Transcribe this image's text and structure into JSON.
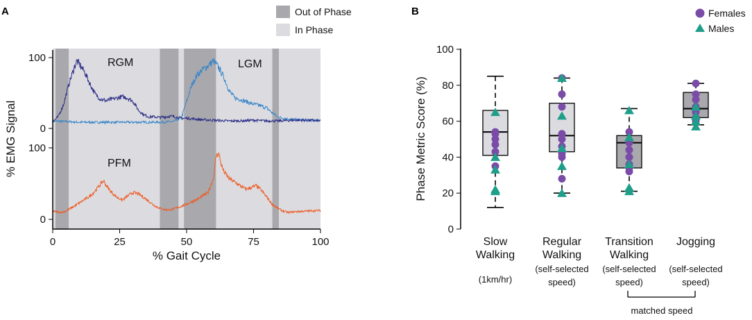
{
  "chart_data": [
    {
      "panel": "A",
      "type": "line",
      "xlabel": "% Gait Cycle",
      "ylabel": "% EMG Signal",
      "x_ticks": [
        "0",
        "25",
        "50",
        "75",
        "100"
      ],
      "xlim": [
        0,
        100
      ],
      "top_axis_ticks": [
        "0",
        "100"
      ],
      "bottom_axis_ticks": [
        "0",
        "100"
      ],
      "legend": [
        {
          "label": "Out of Phase",
          "color": "#a9a9ad"
        },
        {
          "label": "In Phase",
          "color": "#dcdce0"
        }
      ],
      "phases": [
        {
          "start": 0,
          "end": 1,
          "kind": "in"
        },
        {
          "start": 1,
          "end": 6,
          "kind": "out"
        },
        {
          "start": 6,
          "end": 40,
          "kind": "in"
        },
        {
          "start": 40,
          "end": 47,
          "kind": "out"
        },
        {
          "start": 47,
          "end": 49,
          "kind": "in"
        },
        {
          "start": 49,
          "end": 61,
          "kind": "out"
        },
        {
          "start": 61,
          "end": 82,
          "kind": "in"
        },
        {
          "start": 82,
          "end": 84.5,
          "kind": "out"
        },
        {
          "start": 84.5,
          "end": 100,
          "kind": "in"
        }
      ],
      "series": [
        {
          "name": "RGM",
          "color": "#2b2c86",
          "x": [
            0,
            2,
            4,
            6,
            8,
            9,
            10,
            12,
            14,
            16,
            18,
            20,
            22,
            24,
            26,
            28,
            30,
            32,
            34,
            36,
            38,
            40,
            42,
            44,
            46,
            48,
            50,
            55,
            60,
            65,
            70,
            75,
            80,
            85,
            90,
            95,
            100
          ],
          "y": [
            5,
            12,
            30,
            60,
            85,
            95,
            90,
            78,
            60,
            45,
            38,
            36,
            38,
            40,
            42,
            40,
            35,
            22,
            15,
            12,
            12,
            11,
            12,
            13,
            12,
            10,
            10,
            8,
            7,
            6,
            6,
            7,
            6,
            6,
            7,
            7,
            6
          ]
        },
        {
          "name": "LGM",
          "color": "#3a86c8",
          "x": [
            0,
            5,
            10,
            20,
            30,
            40,
            45,
            48,
            50,
            52,
            54,
            56,
            58,
            60,
            62,
            64,
            66,
            68,
            70,
            72,
            74,
            76,
            78,
            80,
            82,
            84,
            86,
            90,
            95,
            100
          ],
          "y": [
            6,
            5,
            4,
            4,
            4,
            4,
            5,
            10,
            35,
            60,
            75,
            82,
            88,
            95,
            85,
            70,
            50,
            40,
            38,
            35,
            32,
            30,
            28,
            25,
            18,
            12,
            10,
            8,
            7,
            7
          ]
        },
        {
          "name": "PFM",
          "color": "#ee5b24",
          "x": [
            0,
            3,
            5,
            8,
            10,
            12,
            14,
            16,
            18,
            19,
            20,
            22,
            24,
            26,
            28,
            30,
            32,
            34,
            36,
            38,
            40,
            42,
            44,
            46,
            48,
            50,
            52,
            54,
            56,
            58,
            60,
            61,
            62,
            63,
            64,
            66,
            68,
            70,
            72,
            74,
            76,
            78,
            80,
            82,
            84,
            86,
            88,
            90,
            95,
            100
          ],
          "y": [
            8,
            6,
            8,
            15,
            20,
            25,
            30,
            38,
            48,
            52,
            45,
            35,
            28,
            24,
            30,
            35,
            33,
            28,
            22,
            16,
            12,
            10,
            10,
            12,
            15,
            18,
            22,
            25,
            30,
            35,
            55,
            88,
            92,
            75,
            65,
            55,
            50,
            45,
            40,
            42,
            45,
            38,
            28,
            18,
            12,
            8,
            6,
            7,
            8,
            9
          ]
        }
      ]
    },
    {
      "panel": "B",
      "type": "box",
      "ylabel": "Phase Metric Score (%)",
      "ylim": [
        0,
        100
      ],
      "y_ticks": [
        "0",
        "20",
        "40",
        "60",
        "80",
        "100"
      ],
      "legend": [
        {
          "label": "Females",
          "color": "#7a4ca8",
          "marker": "circle"
        },
        {
          "label": "Males",
          "color": "#1f9e8a",
          "marker": "triangle"
        }
      ],
      "categories": [
        {
          "line1": "Slow",
          "line2": "Walking",
          "sub1": "(1km/hr)",
          "sub2": "",
          "box_color": "#dcdce0",
          "whisker_low": 12,
          "q1": 41,
          "median": 54,
          "q3": 66,
          "whisker_high": 85,
          "females": [
            54,
            53,
            50,
            47,
            43,
            35
          ],
          "males": [
            65,
            40,
            33,
            22,
            21
          ]
        },
        {
          "line1": "Regular",
          "line2": "Walking",
          "sub1": "(self-selected",
          "sub2": "speed)",
          "box_color": "#dcdce0",
          "whisker_low": 20,
          "q1": 43,
          "median": 52,
          "q3": 70,
          "whisker_high": 84,
          "females": [
            84,
            75,
            68,
            53,
            50,
            46,
            42,
            40,
            28
          ],
          "males": [
            84,
            63,
            45,
            35,
            20
          ]
        },
        {
          "line1": "Transition",
          "line2": "Walking",
          "sub1": "(self-selected",
          "sub2": "speed)",
          "box_color": "#a9a9ad",
          "whisker_low": 21,
          "q1": 34,
          "median": 48,
          "q3": 52,
          "whisker_high": 67,
          "females": [
            54,
            48,
            44,
            40,
            36,
            34,
            32
          ],
          "males": [
            66,
            51,
            36,
            23,
            21
          ]
        },
        {
          "line1": "Jogging",
          "line2": "",
          "sub1": "(self-selected",
          "sub2": "speed)",
          "box_color": "#a9a9ad",
          "whisker_low": 58,
          "q1": 62,
          "median": 67,
          "q3": 76,
          "whisker_high": 81,
          "females": [
            81,
            75,
            72,
            68,
            65,
            62,
            60
          ],
          "males": [
            68,
            63,
            60,
            57
          ]
        }
      ],
      "bracket_label": "matched speed"
    }
  ]
}
